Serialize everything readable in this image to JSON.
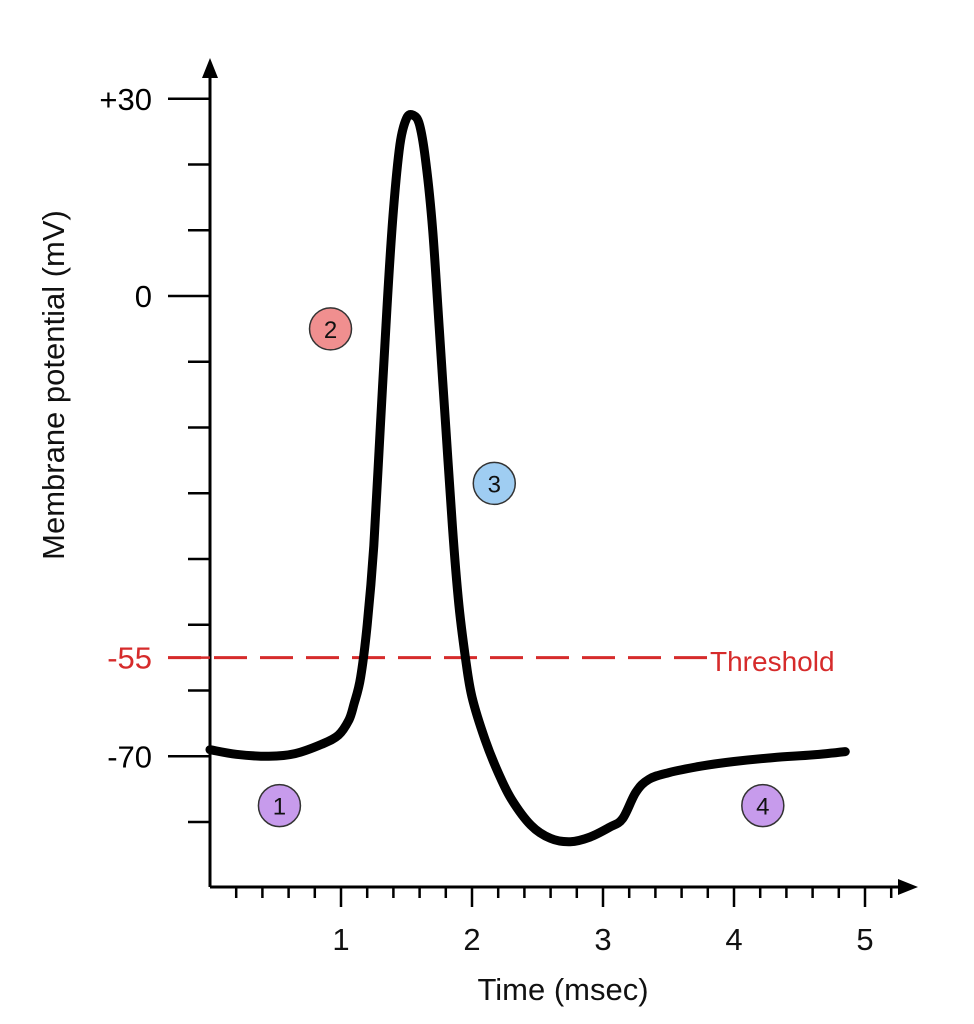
{
  "chart_data": {
    "type": "line",
    "xlabel": "Time (msec)",
    "ylabel": "Membrane potential (mV)",
    "xlim": [
      0,
      5.3
    ],
    "ylim": [
      -90,
      35
    ],
    "x_ticks": [
      {
        "value": 1,
        "label": "1"
      },
      {
        "value": 2,
        "label": "2"
      },
      {
        "value": 3,
        "label": "3"
      },
      {
        "value": 4,
        "label": "4"
      },
      {
        "value": 5,
        "label": "5"
      }
    ],
    "x_minor_step": 0.2,
    "y_ticks": [
      {
        "value": 30,
        "label": "+30"
      },
      {
        "value": 0,
        "label": "0"
      },
      {
        "value": -55,
        "label": "-55",
        "color": "#d62b2b"
      },
      {
        "value": -70,
        "label": "-70"
      }
    ],
    "y_minor_ticks": [
      20,
      10,
      -10,
      -20,
      -30,
      -40,
      -50,
      -60,
      -80
    ],
    "series": [
      {
        "color": "#000000",
        "x": [
          0,
          0.2,
          0.45,
          0.65,
          0.85,
          0.98,
          1.06,
          1.1,
          1.15,
          1.2,
          1.25,
          1.3,
          1.35,
          1.4,
          1.45,
          1.5,
          1.55,
          1.6,
          1.65,
          1.7,
          1.75,
          1.8,
          1.85,
          1.9,
          1.95,
          2.0,
          2.1,
          2.2,
          2.3,
          2.45,
          2.6,
          2.75,
          2.9,
          3.05,
          3.15,
          3.25,
          3.35,
          3.5,
          3.75,
          4.0,
          4.3,
          4.6,
          4.85
        ],
        "y": [
          -69,
          -69.7,
          -70,
          -69.6,
          -68.2,
          -66.8,
          -64.5,
          -62,
          -58,
          -50,
          -38,
          -20,
          -2,
          13,
          23,
          27,
          27.5,
          26,
          20,
          10,
          -5,
          -20,
          -35,
          -47,
          -55,
          -61,
          -67.5,
          -72.5,
          -76.5,
          -80.5,
          -82.5,
          -83,
          -82.3,
          -80.8,
          -79.5,
          -75.5,
          -73.5,
          -72.5,
          -71.5,
          -70.8,
          -70.2,
          -69.8,
          -69.3
        ]
      }
    ],
    "threshold": {
      "value": -55,
      "label": "Threshold",
      "color": "#d62b2b"
    },
    "phases": [
      {
        "label": "1",
        "x": 0.53,
        "y": -77.5,
        "color": "#c79bec"
      },
      {
        "label": "2",
        "x": 0.92,
        "y": -5,
        "color": "#f08f8f"
      },
      {
        "label": "3",
        "x": 2.17,
        "y": -28.5,
        "color": "#9fcdf2"
      },
      {
        "label": "4",
        "x": 4.22,
        "y": -77.5,
        "color": "#c79bec"
      }
    ],
    "grid": false,
    "colors": {
      "axis": "#000000",
      "curve": "#000000",
      "threshold": "#d62b2b"
    }
  }
}
